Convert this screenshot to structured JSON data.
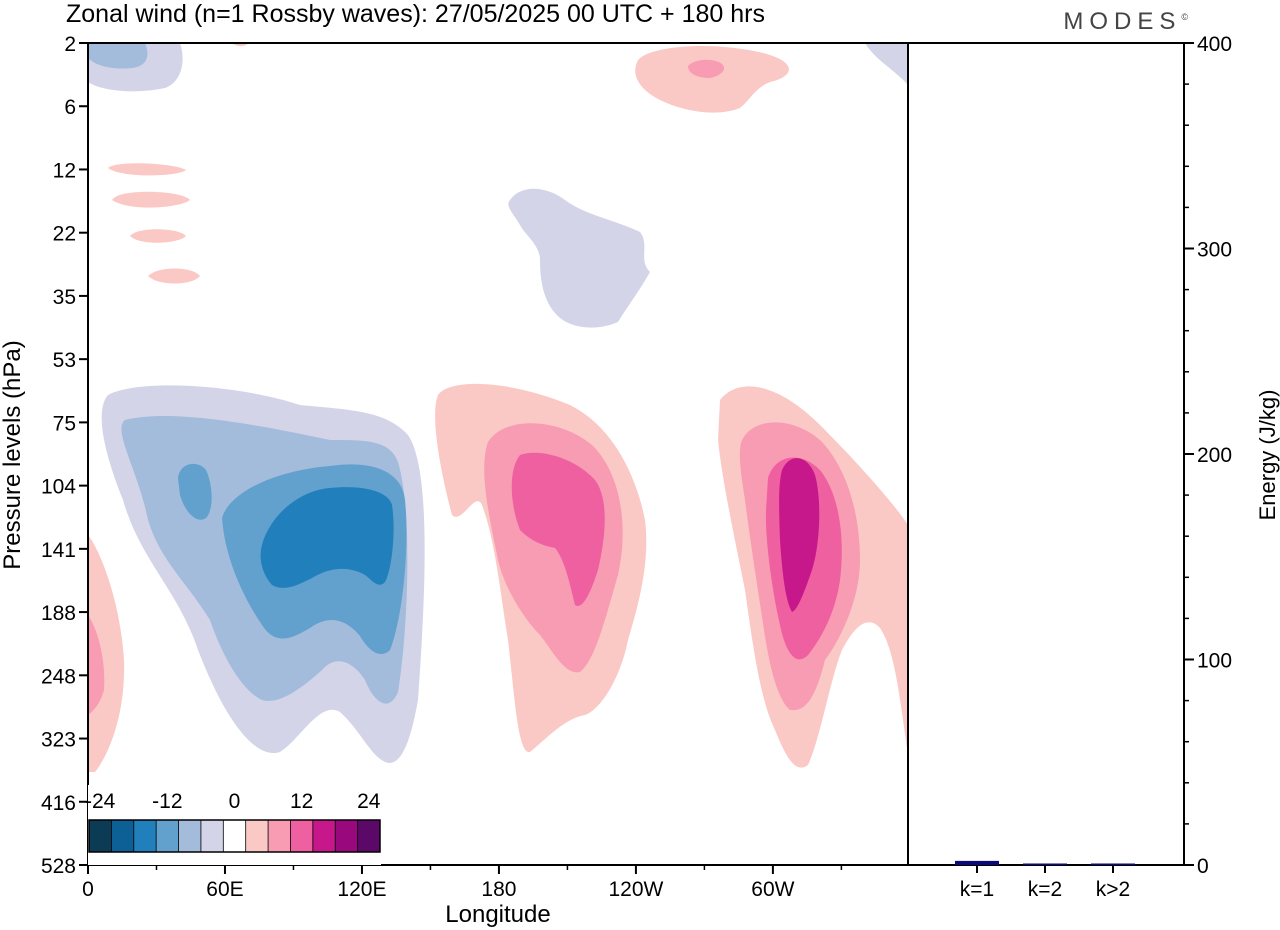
{
  "title": "Zonal wind (n=1 Rossby waves):  27/05/2025  00 UTC  + 180 hrs",
  "brand": "MODES",
  "brand_mark": "©",
  "chart_data": [
    {
      "type": "contour",
      "xlabel": "Longitude",
      "ylabel": "Pressure levels (hPa)",
      "x_ticks": [
        "0",
        "60E",
        "120E",
        "180",
        "120W",
        "60W"
      ],
      "x_tick_values": [
        0,
        60,
        120,
        180,
        240,
        300
      ],
      "xlim": [
        0,
        360
      ],
      "y_ticks": [
        "2",
        "6",
        "12",
        "22",
        "35",
        "53",
        "75",
        "104",
        "141",
        "188",
        "248",
        "323",
        "416",
        "528"
      ],
      "y_scale": "pressure levels (uniformly spaced, top = 2 hPa)",
      "colorbar": {
        "tick_labels": [
          "-24",
          "-12",
          "0",
          "12",
          "24"
        ],
        "tick_values": [
          -24,
          -12,
          0,
          12,
          24
        ],
        "levels": [
          -24,
          -20,
          -16,
          -12,
          -8,
          -4,
          0,
          4,
          8,
          12,
          16,
          20,
          24
        ],
        "colors": [
          "#0b3b55",
          "#0d6096",
          "#2180bb",
          "#62a0cd",
          "#a3bcdb",
          "#d3d4e8",
          "#ffffff",
          "#fbc9c5",
          "#f89cb4",
          "#ef60a0",
          "#c6188b",
          "#99087c",
          "#5c0868"
        ]
      },
      "features": [
        {
          "sign": "negative",
          "center_lon": 95,
          "center_level": "141",
          "peak": -16
        },
        {
          "sign": "positive",
          "center_lon": 200,
          "center_level": "141",
          "peak": 12
        },
        {
          "sign": "positive",
          "center_lon": 310,
          "center_level": "141",
          "peak": 16
        },
        {
          "sign": "negative",
          "center_lon": 215,
          "center_level": "22",
          "peak": -4
        },
        {
          "sign": "positive",
          "center_lon": 270,
          "center_level": "2",
          "peak": 8
        },
        {
          "sign": "negative",
          "center_lon": 15,
          "center_level": "2",
          "peak": -8
        },
        {
          "sign": "positive",
          "center_lon": 3,
          "center_level": "248",
          "peak": 8
        }
      ]
    },
    {
      "type": "bar",
      "categories": [
        "k=1",
        "k=2",
        "k>2"
      ],
      "values": [
        2,
        0.6,
        0.6
      ],
      "ylabel": "Energy (J/kg)",
      "ylim": [
        0,
        400
      ],
      "y_ticks": [
        0,
        100,
        200,
        300,
        400
      ],
      "bar_color": "#0a0a7a"
    }
  ]
}
